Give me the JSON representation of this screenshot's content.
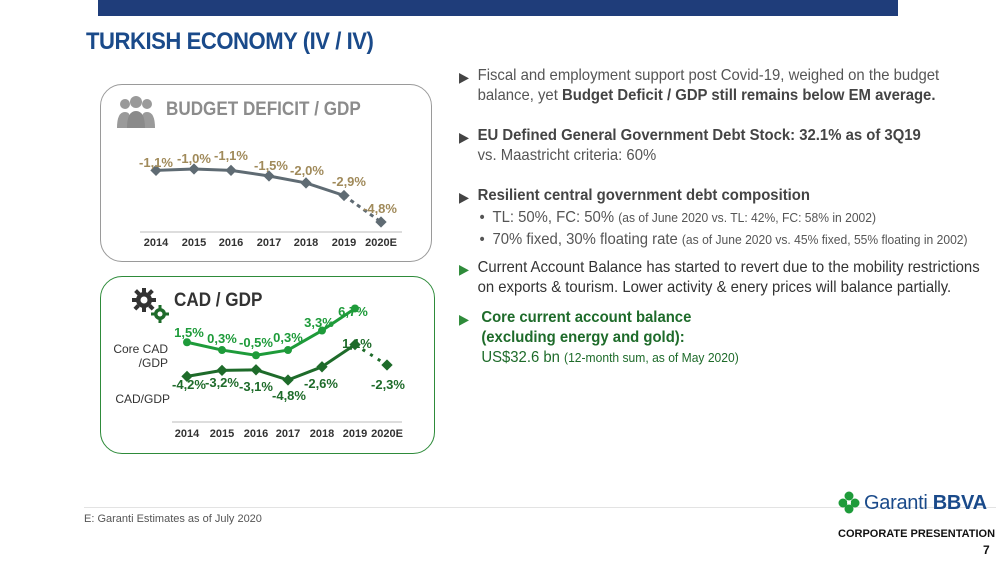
{
  "header": {
    "title": "TURKISH ECONOMY (IV / IV)"
  },
  "colors": {
    "gray_series": "#5f6b73",
    "green_series": "#1e9b3a",
    "dark_green_series": "#1e6b2a",
    "title_blue": "#1a4a8a"
  },
  "chart_data": [
    {
      "type": "line",
      "title": "BUDGET DEFICIT / GDP",
      "categories": [
        "2014",
        "2015",
        "2016",
        "2017",
        "2018",
        "2019",
        "2020E"
      ],
      "series": [
        {
          "values": [
            -1.1,
            -1.0,
            -1.1,
            -1.5,
            -2.0,
            -2.9,
            -4.8
          ],
          "labels": [
            "-1,1%",
            "-1,0%",
            "-1,1%",
            "-1,5%",
            "-2,0%",
            "-2,9%",
            "-4,8%"
          ]
        }
      ],
      "estimate_from": "2020E",
      "icon": "people-icon"
    },
    {
      "type": "line",
      "title": "CAD / GDP",
      "categories": [
        "2014",
        "2015",
        "2016",
        "2017",
        "2018",
        "2019",
        "2020E"
      ],
      "series": [
        {
          "name": "Core CAD /GDP",
          "values": [
            1.5,
            0.3,
            -0.5,
            0.3,
            3.3,
            6.7,
            null
          ],
          "labels": [
            "1,5%",
            "0,3%",
            "-0,5%",
            "0,3%",
            "3,3%",
            "6,7%",
            ""
          ]
        },
        {
          "name": "CAD/GDP",
          "values": [
            -4.2,
            -3.2,
            -3.1,
            -4.8,
            -2.6,
            1.1,
            -2.3
          ],
          "labels": [
            "-4,2%",
            "-3,2%",
            "-3,1%",
            "-4,8%",
            "-2,6%",
            "1,1%",
            "-2,3%"
          ]
        }
      ],
      "icon": "gears-icon"
    }
  ],
  "bullets": {
    "b1_text": "Fiscal and employment support post Covid-19, weighed on the budget balance, yet ",
    "b1_bold": "Budget Deficit / GDP still remains below EM average.",
    "b2_bold": "EU Defined General Government Debt Stock: 32.1% as of 3Q19",
    "b2_text": "vs. Maastricht criteria: 60%",
    "b3_bold": "Resilient central government debt composition",
    "b3_sub1_main": "TL: 50%, FC: 50% ",
    "b3_sub1_small": "(as of June 2020 vs. TL: 42%, FC: 58% in 2002)",
    "b3_sub2_main": "70% fixed, 30% floating rate ",
    "b3_sub2_small": "(as of June 2020 vs. 45% fixed, 55% floating in 2002)",
    "b4_text": "Current Account Balance has started to revert due to the mobility restrictions on exports & tourism. Lower activity & enery prices will balance partially.",
    "b5_bold": "Core current account balance (excluding energy and gold):",
    "b5_value": "US$32.6 bn ",
    "b5_small": "(12-month sum, as of May  2020)"
  },
  "footer": {
    "note": "E: Garanti Estimates as of  July 2020",
    "logo_text_light": "Garanti ",
    "logo_text_bold": "BBVA",
    "corporate": "CORPORATE PRESENTATION",
    "page_number": "7"
  }
}
